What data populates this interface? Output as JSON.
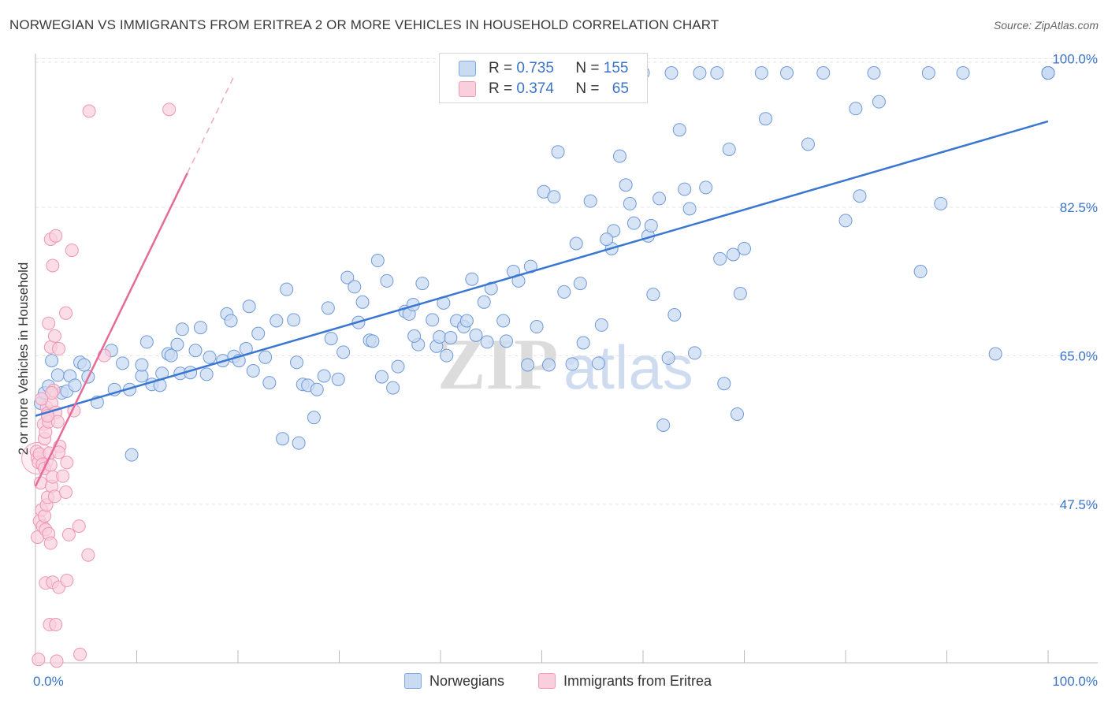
{
  "title": "NORWEGIAN VS IMMIGRANTS FROM ERITREA 2 OR MORE VEHICLES IN HOUSEHOLD CORRELATION CHART",
  "source": "Source: ZipAtlas.com",
  "watermark": {
    "zip": "ZIP",
    "atlas": "atlas"
  },
  "legend_top": [
    {
      "r_label": "R = ",
      "r_value": "0.735",
      "n_label": "N = ",
      "n_value": "155",
      "color": "#7fa7e0"
    },
    {
      "r_label": "R = ",
      "r_value": "0.374",
      "n_label": "N = ",
      "n_value": "65",
      "color": "#f19bb8"
    }
  ],
  "legend_bottom": [
    {
      "label": "Norwegians",
      "color": "#7fa7e0"
    },
    {
      "label": "Immigrants from Eritrea",
      "color": "#f19bb8"
    }
  ],
  "chart_data": {
    "type": "scatter",
    "ylabel": "2 or more Vehicles in Household",
    "x_tick_labels": [
      "0.0%",
      "100.0%"
    ],
    "y_tick_labels": [
      "100.0%",
      "82.5%",
      "65.0%",
      "47.5%"
    ],
    "y_ticks": [
      100.0,
      82.5,
      65.0,
      47.5
    ],
    "xlim": [
      0,
      100
    ],
    "ylim": [
      30.5,
      102
    ],
    "grid": true,
    "colors": {
      "norwegians": "#7fa7e0",
      "eritrea": "#f19bb8",
      "blue_line": "#3a77d0",
      "pink_line": "#e56b99"
    },
    "series": [
      {
        "name": "Norwegians",
        "trend": {
          "x": [
            0,
            100
          ],
          "y": [
            59.6,
            94.3
          ]
        },
        "points": [
          [
            0.5,
            61.1
          ],
          [
            0.9,
            62.3
          ],
          [
            1.3,
            63.1
          ],
          [
            1.6,
            66.1
          ],
          [
            2.2,
            64.4
          ],
          [
            2.6,
            62.3
          ],
          [
            3.1,
            62.5
          ],
          [
            3.4,
            64.3
          ],
          [
            3.9,
            63.2
          ],
          [
            4.4,
            65.9
          ],
          [
            4.8,
            65.6
          ],
          [
            5.2,
            64.2
          ],
          [
            6.1,
            61.2
          ],
          [
            7.5,
            67.3
          ],
          [
            7.8,
            62.7
          ],
          [
            8.6,
            65.8
          ],
          [
            9.3,
            62.7
          ],
          [
            9.5,
            55.0
          ],
          [
            10.5,
            64.3
          ],
          [
            10.5,
            65.6
          ],
          [
            11.0,
            68.3
          ],
          [
            11.5,
            63.3
          ],
          [
            12.3,
            63.2
          ],
          [
            12.5,
            64.6
          ],
          [
            13.1,
            66.9
          ],
          [
            13.4,
            66.7
          ],
          [
            14.0,
            68.0
          ],
          [
            14.3,
            64.6
          ],
          [
            14.5,
            69.8
          ],
          [
            15.3,
            64.7
          ],
          [
            15.8,
            67.3
          ],
          [
            16.3,
            70.0
          ],
          [
            16.9,
            64.5
          ],
          [
            17.2,
            66.5
          ],
          [
            18.5,
            66.1
          ],
          [
            18.9,
            71.6
          ],
          [
            19.3,
            70.8
          ],
          [
            19.6,
            66.6
          ],
          [
            20.1,
            66.1
          ],
          [
            20.8,
            67.5
          ],
          [
            21.1,
            72.5
          ],
          [
            21.5,
            64.9
          ],
          [
            22.0,
            69.3
          ],
          [
            22.7,
            66.5
          ],
          [
            23.1,
            63.5
          ],
          [
            23.8,
            70.8
          ],
          [
            24.4,
            56.9
          ],
          [
            24.8,
            74.5
          ],
          [
            25.5,
            70.9
          ],
          [
            25.8,
            65.9
          ],
          [
            26.0,
            56.4
          ],
          [
            26.4,
            63.3
          ],
          [
            26.9,
            63.2
          ],
          [
            27.5,
            59.4
          ],
          [
            27.8,
            62.7
          ],
          [
            28.5,
            64.3
          ],
          [
            28.9,
            72.3
          ],
          [
            29.2,
            68.7
          ],
          [
            29.9,
            63.9
          ],
          [
            30.4,
            67.1
          ],
          [
            30.8,
            75.9
          ],
          [
            31.5,
            74.8
          ],
          [
            31.9,
            70.6
          ],
          [
            32.3,
            73.0
          ],
          [
            33.0,
            68.5
          ],
          [
            33.3,
            68.4
          ],
          [
            33.8,
            77.9
          ],
          [
            34.2,
            64.2
          ],
          [
            34.7,
            75.5
          ],
          [
            35.3,
            62.9
          ],
          [
            35.8,
            65.4
          ],
          [
            36.5,
            71.9
          ],
          [
            36.9,
            71.6
          ],
          [
            37.3,
            72.7
          ],
          [
            37.8,
            68.0
          ],
          [
            38.2,
            75.2
          ],
          [
            39.2,
            70.9
          ],
          [
            39.6,
            67.8
          ],
          [
            39.9,
            68.9
          ],
          [
            40.3,
            72.9
          ],
          [
            40.6,
            66.7
          ],
          [
            41.0,
            68.8
          ],
          [
            41.6,
            70.8
          ],
          [
            42.3,
            70.1
          ],
          [
            42.6,
            70.8
          ],
          [
            43.1,
            75.7
          ],
          [
            43.5,
            69.1
          ],
          [
            44.3,
            73.0
          ],
          [
            44.6,
            68.3
          ],
          [
            45.0,
            74.6
          ],
          [
            46.2,
            70.8
          ],
          [
            46.5,
            68.4
          ],
          [
            47.2,
            76.6
          ],
          [
            47.7,
            75.5
          ],
          [
            48.6,
            65.6
          ],
          [
            48.9,
            77.2
          ],
          [
            49.5,
            70.1
          ],
          [
            50.2,
            86.0
          ],
          [
            50.7,
            65.6
          ],
          [
            51.2,
            85.4
          ],
          [
            51.6,
            90.7
          ],
          [
            52.2,
            74.2
          ],
          [
            53.0,
            65.7
          ],
          [
            53.4,
            79.9
          ],
          [
            53.8,
            75.2
          ],
          [
            54.1,
            68.2
          ],
          [
            54.8,
            84.9
          ],
          [
            55.6,
            65.8
          ],
          [
            55.9,
            70.3
          ],
          [
            56.9,
            79.3
          ],
          [
            57.1,
            81.4
          ],
          [
            57.7,
            90.2
          ],
          [
            58.3,
            86.8
          ],
          [
            58.7,
            84.6
          ],
          [
            59.1,
            82.3
          ],
          [
            60.0,
            100.0
          ],
          [
            60.5,
            80.8
          ],
          [
            60.8,
            82.0
          ],
          [
            61.6,
            85.2
          ],
          [
            62.0,
            58.5
          ],
          [
            62.5,
            66.4
          ],
          [
            62.8,
            100.0
          ],
          [
            63.1,
            71.5
          ],
          [
            63.6,
            93.3
          ],
          [
            64.1,
            86.3
          ],
          [
            64.6,
            84.0
          ],
          [
            65.1,
            67.0
          ],
          [
            65.6,
            100.0
          ],
          [
            66.2,
            86.5
          ],
          [
            67.3,
            100.0
          ],
          [
            67.6,
            78.1
          ],
          [
            68.0,
            63.4
          ],
          [
            68.5,
            91.0
          ],
          [
            68.9,
            78.6
          ],
          [
            69.3,
            59.8
          ],
          [
            69.6,
            74.0
          ],
          [
            70.0,
            79.3
          ],
          [
            71.7,
            100.0
          ],
          [
            72.1,
            94.6
          ],
          [
            74.2,
            100.0
          ],
          [
            76.3,
            91.6
          ],
          [
            77.8,
            100.0
          ],
          [
            80.0,
            82.6
          ],
          [
            81.0,
            95.8
          ],
          [
            81.4,
            85.5
          ],
          [
            82.8,
            100.0
          ],
          [
            83.3,
            96.6
          ],
          [
            87.4,
            76.6
          ],
          [
            88.2,
            100.0
          ],
          [
            91.6,
            100.0
          ],
          [
            100.0,
            100.0
          ],
          [
            100.0,
            100.0
          ],
          [
            100.0,
            100.0
          ],
          [
            100.0,
            100.0
          ],
          [
            100.0,
            100.0
          ],
          [
            100.0,
            100.0
          ],
          [
            100.0,
            100.0
          ],
          [
            100.0,
            100.0
          ],
          [
            100.0,
            100.0
          ],
          [
            100.0,
            100.0
          ],
          [
            94.8,
            66.9
          ],
          [
            89.4,
            84.6
          ],
          [
            61.0,
            73.9
          ],
          [
            37.4,
            69.0
          ],
          [
            56.4,
            80.4
          ]
        ]
      },
      {
        "name": "Immigrants from Eritrea",
        "trend": {
          "x": [
            0,
            15
          ],
          "y": [
            51.3,
            88.2
          ]
        },
        "trend_dashed": {
          "x": [
            15,
            19.6
          ],
          "y": [
            88.2,
            99.6
          ]
        },
        "points": [
          [
            0.1,
            55.4
          ],
          [
            0.2,
            54.6
          ],
          [
            0.3,
            54.1
          ],
          [
            0.4,
            55.1
          ],
          [
            0.5,
            51.7
          ],
          [
            0.7,
            53.9
          ],
          [
            0.8,
            58.6
          ],
          [
            0.9,
            53.4
          ],
          [
            0.9,
            56.9
          ],
          [
            1.0,
            57.7
          ],
          [
            1.1,
            60.6
          ],
          [
            1.2,
            59.9
          ],
          [
            1.3,
            58.9
          ],
          [
            1.4,
            55.2
          ],
          [
            1.5,
            53.8
          ],
          [
            1.6,
            61.1
          ],
          [
            1.8,
            62.6
          ],
          [
            2.0,
            60.0
          ],
          [
            2.2,
            58.9
          ],
          [
            2.4,
            56.0
          ],
          [
            0.2,
            45.3
          ],
          [
            0.4,
            47.2
          ],
          [
            0.6,
            48.5
          ],
          [
            0.7,
            46.6
          ],
          [
            0.9,
            47.8
          ],
          [
            1.0,
            46.2
          ],
          [
            1.1,
            49.1
          ],
          [
            1.2,
            50.0
          ],
          [
            1.3,
            45.7
          ],
          [
            1.5,
            44.6
          ],
          [
            1.6,
            51.3
          ],
          [
            1.7,
            52.4
          ],
          [
            1.9,
            50.1
          ],
          [
            2.3,
            55.3
          ],
          [
            2.7,
            52.5
          ],
          [
            3.0,
            50.6
          ],
          [
            3.1,
            54.1
          ],
          [
            3.3,
            45.6
          ],
          [
            3.8,
            60.2
          ],
          [
            4.3,
            46.6
          ],
          [
            1.0,
            39.9
          ],
          [
            1.4,
            35.0
          ],
          [
            1.7,
            40.0
          ],
          [
            2.0,
            35.0
          ],
          [
            2.3,
            39.4
          ],
          [
            3.1,
            40.2
          ],
          [
            5.2,
            43.2
          ],
          [
            0.3,
            30.9
          ],
          [
            4.4,
            31.5
          ],
          [
            2.1,
            30.7
          ],
          [
            1.5,
            67.7
          ],
          [
            1.9,
            69.0
          ],
          [
            2.3,
            67.5
          ],
          [
            3.0,
            71.7
          ],
          [
            1.3,
            70.5
          ],
          [
            1.5,
            80.4
          ],
          [
            2.0,
            80.8
          ],
          [
            1.7,
            77.3
          ],
          [
            3.6,
            79.1
          ],
          [
            5.3,
            95.5
          ],
          [
            13.2,
            95.7
          ],
          [
            6.8,
            66.7
          ],
          [
            1.6,
            62.3
          ],
          [
            1.2,
            59.6
          ],
          [
            0.6,
            61.6
          ]
        ]
      }
    ]
  }
}
